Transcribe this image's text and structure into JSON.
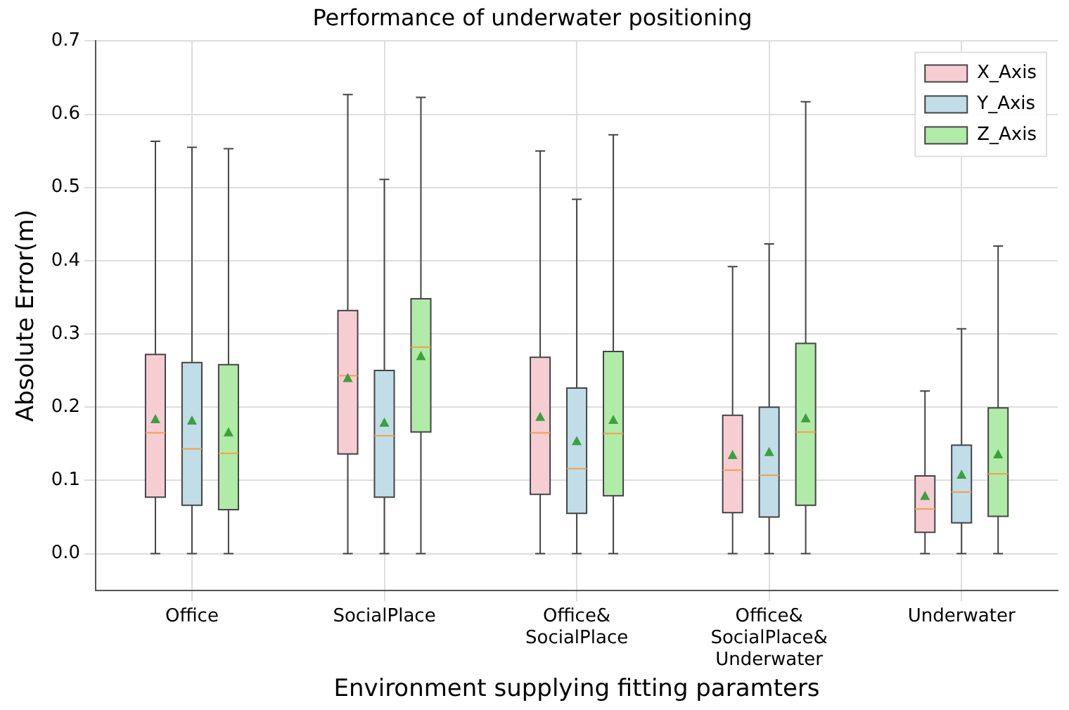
{
  "chart_data": {
    "type": "box",
    "title": "Performance of underwater positioning",
    "xlabel": "Environment supplying fitting paramters",
    "ylabel": "Absolute Error(m)",
    "categories": [
      "Office",
      "SocialPlace",
      "Office&\nSocialPlace",
      "Office&\nSocialPlace&\nUnderwater",
      "Underwater"
    ],
    "ylim": [
      -0.05,
      0.7
    ],
    "yticks": [
      {
        "value": 0,
        "label": "0.0"
      },
      0.1,
      0.2,
      0.3,
      0.4,
      0.5,
      0.6,
      0.7
    ],
    "grid": true,
    "legend": "top right",
    "marker": "triangle",
    "series": [
      {
        "name": "X_Axis",
        "color": "#f7cdd4",
        "boxes": [
          {
            "low": 0,
            "q1": 0.077,
            "median": 0.165,
            "q3": 0.272,
            "high": 0.563,
            "mean": 0.183
          },
          {
            "low": 0,
            "q1": 0.136,
            "median": 0.243,
            "q3": 0.332,
            "high": 0.627,
            "mean": 0.239
          },
          {
            "low": 0,
            "q1": 0.081,
            "median": 0.165,
            "q3": 0.268,
            "high": 0.55,
            "mean": 0.186
          },
          {
            "low": 0,
            "q1": 0.056,
            "median": 0.114,
            "q3": 0.189,
            "high": 0.392,
            "mean": 0.134
          },
          {
            "low": 0,
            "q1": 0.029,
            "median": 0.061,
            "q3": 0.106,
            "high": 0.222,
            "mean": 0.078
          }
        ]
      },
      {
        "name": "Y_Axis",
        "color": "#c0dde8",
        "boxes": [
          {
            "low": 0,
            "q1": 0.066,
            "median": 0.143,
            "q3": 0.261,
            "high": 0.555,
            "mean": 0.181
          },
          {
            "low": 0,
            "q1": 0.077,
            "median": 0.161,
            "q3": 0.25,
            "high": 0.511,
            "mean": 0.178
          },
          {
            "low": 0,
            "q1": 0.055,
            "median": 0.116,
            "q3": 0.226,
            "high": 0.484,
            "mean": 0.153
          },
          {
            "low": 0,
            "q1": 0.05,
            "median": 0.107,
            "q3": 0.2,
            "high": 0.423,
            "mean": 0.138
          },
          {
            "low": 0,
            "q1": 0.042,
            "median": 0.084,
            "q3": 0.148,
            "high": 0.307,
            "mean": 0.107
          }
        ]
      },
      {
        "name": "Z_Axis",
        "color": "#b0eba8",
        "boxes": [
          {
            "low": 0,
            "q1": 0.06,
            "median": 0.137,
            "q3": 0.258,
            "high": 0.553,
            "mean": 0.165
          },
          {
            "low": 0,
            "q1": 0.166,
            "median": 0.282,
            "q3": 0.348,
            "high": 0.623,
            "mean": 0.269
          },
          {
            "low": 0,
            "q1": 0.079,
            "median": 0.164,
            "q3": 0.276,
            "high": 0.572,
            "mean": 0.182
          },
          {
            "low": 0,
            "q1": 0.066,
            "median": 0.166,
            "q3": 0.287,
            "high": 0.617,
            "mean": 0.184
          },
          {
            "low": 0,
            "q1": 0.051,
            "median": 0.109,
            "q3": 0.199,
            "high": 0.42,
            "mean": 0.135
          }
        ]
      }
    ]
  }
}
